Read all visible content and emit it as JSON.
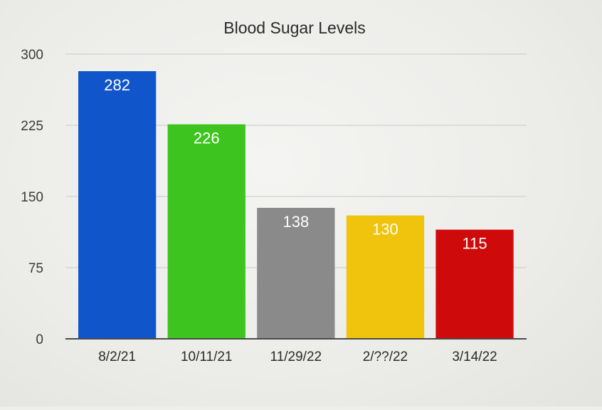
{
  "chart_data": {
    "type": "bar",
    "title": "Blood Sugar Levels",
    "xlabel": "",
    "ylabel": "",
    "categories": [
      "8/2/21",
      "10/11/21",
      "11/29/22",
      "2/??/22",
      "3/14/22"
    ],
    "values": [
      282,
      226,
      138,
      130,
      115
    ],
    "data_labels": [
      "282",
      "226",
      "138",
      "130",
      "115"
    ],
    "bar_colors": [
      "#1055c9",
      "#3ec41e",
      "#8a8a8a",
      "#f0c30c",
      "#cf0a0a"
    ],
    "ylim": [
      0,
      300
    ],
    "yticks": [
      0,
      75,
      150,
      225,
      300
    ],
    "ytick_labels": [
      "0",
      "75",
      "150",
      "225",
      "300"
    ],
    "grid": true,
    "legend": "none"
  }
}
